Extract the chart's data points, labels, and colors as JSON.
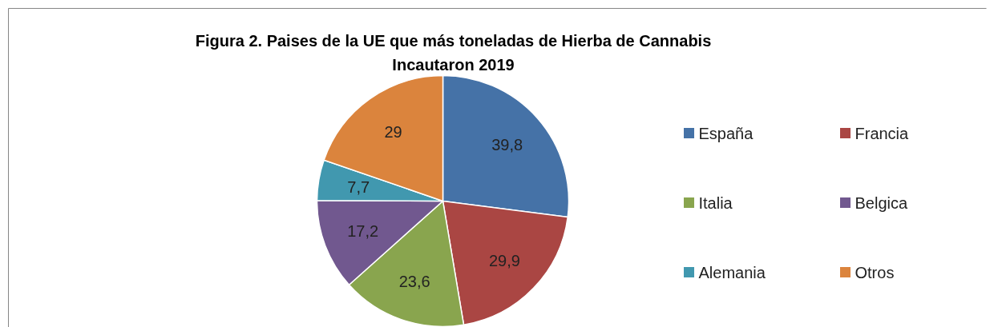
{
  "chart_data": {
    "type": "pie",
    "title": "Figura 2. Paises de la UE que más toneladas de Hierba de Cannabis\nIncautaron 2019",
    "categories": [
      "España",
      "Francia",
      "Italia",
      "Belgica",
      "Alemania",
      "Otros"
    ],
    "values": [
      39.8,
      29.9,
      23.6,
      17.2,
      7.7,
      29
    ],
    "colors": [
      "#4572a7",
      "#aa4643",
      "#89a54e",
      "#71588f",
      "#4198af",
      "#db843d"
    ],
    "value_labels": [
      "39,8",
      "29,9",
      "23,6",
      "17,2",
      "7,7",
      "29"
    ],
    "legend": "right"
  }
}
